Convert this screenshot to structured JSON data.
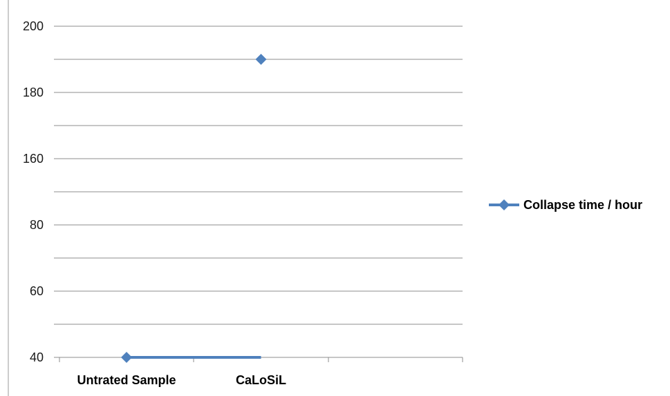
{
  "chart_data": {
    "type": "line",
    "categories": [
      "Untrated Sample",
      "CaLoSiL",
      ""
    ],
    "y_tick_labels": [
      "40",
      "",
      "60",
      "",
      "80",
      "",
      "160",
      "",
      "180",
      "",
      "200"
    ],
    "series": [
      {
        "name": "Collapse time / hour",
        "color": "#4f81bd",
        "marker": "diamond",
        "points": [
          {
            "category": "Untrated Sample",
            "y_index": 0
          },
          {
            "category": "CaLoSiL",
            "y_index": 9
          }
        ],
        "note_line_segment": "line drawn from Untrated Sample to CaLoSiL at bottom value"
      }
    ],
    "legend": {
      "position": "right",
      "label": "Collapse time / hour"
    },
    "grid": true
  }
}
